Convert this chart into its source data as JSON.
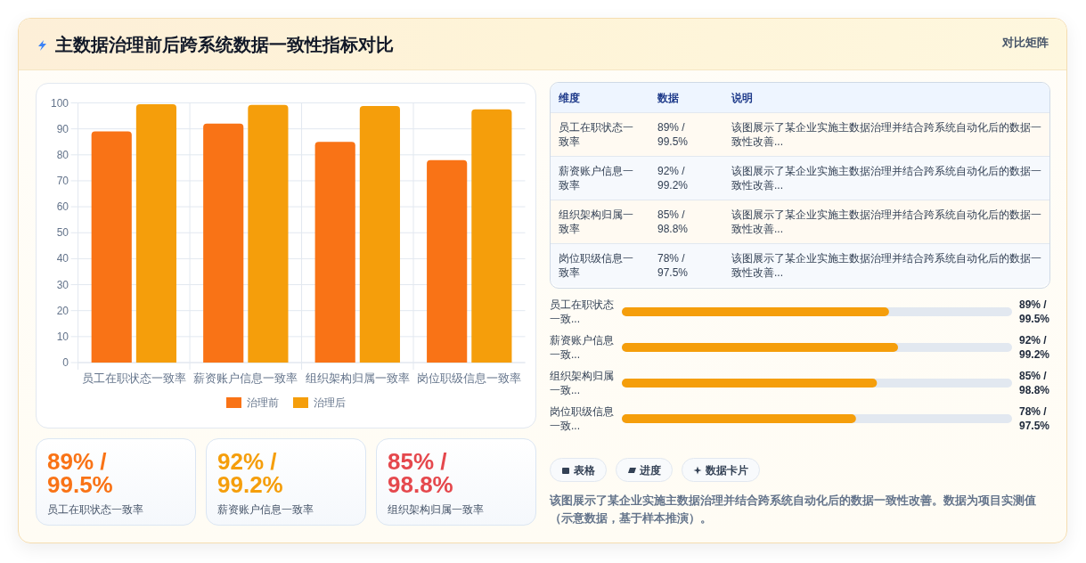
{
  "chart_data": [
    {
      "type": "bar",
      "title": "主数据治理前后跨系统数据一致性指标对比",
      "annotations": [
        "对比矩阵"
      ],
      "categories": [
        "员工在职状态一致率",
        "薪资账户信息一致率",
        "组织架构归属一致率",
        "岗位职级信息一致率"
      ],
      "series": [
        {
          "name": "治理前",
          "color": "#f97316",
          "values": [
            89,
            92,
            85,
            78
          ]
        },
        {
          "name": "治理后",
          "color": "#f59e0b",
          "values": [
            99.5,
            99.2,
            98.8,
            97.5
          ]
        }
      ],
      "ylim": [
        0,
        100
      ],
      "yticks": [
        0,
        10,
        20,
        30,
        40,
        50,
        60,
        70,
        80,
        90,
        100
      ],
      "grid": true,
      "legend": "bottom"
    },
    {
      "type": "other",
      "annotations": [
        "维度",
        "数据",
        "说明",
        "员工在职状态一致率",
        "89% / 99.5%",
        "该图展示了某企业实施主数据治理并结合跨系统自动化后的数据一致性改善...",
        "薪资账户信息一致率",
        "92% / 99.2%",
        "该图展示了某企业实施主数据治理并结合跨系统自动化后的数据一致性改善...",
        "组织架构归属一致率",
        "85% / 98.8%",
        "该图展示了某企业实施主数据治理并结合跨系统自动化后的数据一致性改善...",
        "岗位职级信息一致率",
        "78% / 97.5%",
        "该图展示了某企业实施主数据治理并结合跨系统自动化后的数据一致性改善..."
      ]
    },
    {
      "type": "bar",
      "orientation": "horizontal",
      "xlim": [
        0,
        130
      ],
      "categories": [
        "员工在职状态一致...",
        "薪资账户信息一致...",
        "组织架构归属一致...",
        "岗位职级信息一致..."
      ],
      "series": [
        {
          "color": "#f59e0b",
          "values": [
            89,
            92,
            85,
            78
          ],
          "value_labels": [
            "89% / 99.5%",
            "92% / 99.2%",
            "85% / 98.8%",
            "78% / 97.5%"
          ]
        }
      ]
    },
    {
      "type": "other",
      "categories": [
        "员工在职状态一致率",
        "薪资账户信息一致率",
        "组织架构归属一致率"
      ],
      "value_labels": [
        "89% / 99.5%",
        "92% / 99.2%",
        "85% / 98.8%"
      ]
    },
    {
      "type": "other",
      "annotations": [
        "表格",
        "进度",
        "数据卡片",
        "该图展示了某企业实施主数据治理并结合跨系统自动化后的数据一致性改善。数据为项目实测值（示意数据，基于样本推演）。"
      ]
    }
  ]
}
